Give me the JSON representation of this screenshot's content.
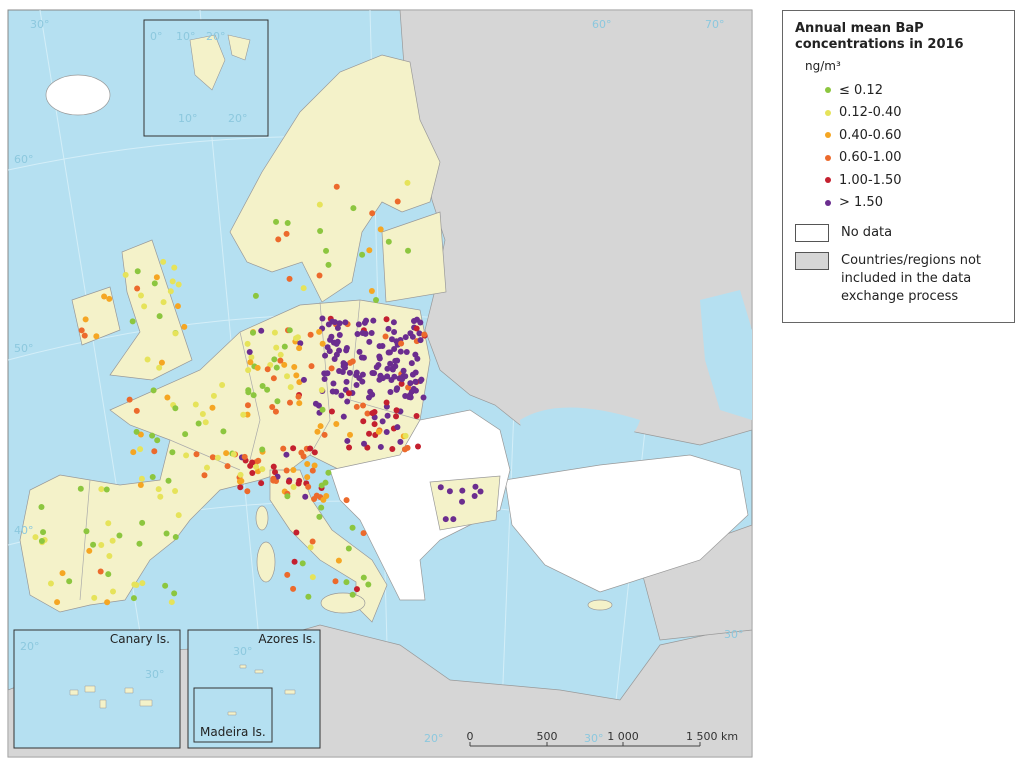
{
  "legend": {
    "title": "Annual mean BaP concentrations in 2016",
    "unit": "ng/m³",
    "classes": [
      {
        "label": "≤ 0.12",
        "color": "#8cc63f"
      },
      {
        "label": "0.12-0.40",
        "color": "#e6e35a"
      },
      {
        "label": "0.40-0.60",
        "color": "#f5a623"
      },
      {
        "label": "0.60-1.00",
        "color": "#ec6a2c"
      },
      {
        "label": "1.00-1.50",
        "color": "#c4202f"
      },
      {
        "label": "> 1.50",
        "color": "#6b2d8f"
      }
    ],
    "areas": [
      {
        "label": "No data",
        "color": "#ffffff"
      },
      {
        "label": "Countries/regions not included in the data exchange process",
        "color": "#d6d6d6"
      }
    ]
  },
  "insets": [
    "Canary Is.",
    "Azores Is.",
    "Madeira Is."
  ],
  "graticule_labels": [
    "30°",
    "60°",
    "70°",
    "60°",
    "50°",
    "40°",
    "30°",
    "20°",
    "30°",
    "0°",
    "10°",
    "20°",
    "10°",
    "20°",
    "20°",
    "30°",
    "30°"
  ],
  "scale_bar": {
    "labels": [
      "0",
      "500",
      "1 000",
      "1 500 km"
    ]
  }
}
